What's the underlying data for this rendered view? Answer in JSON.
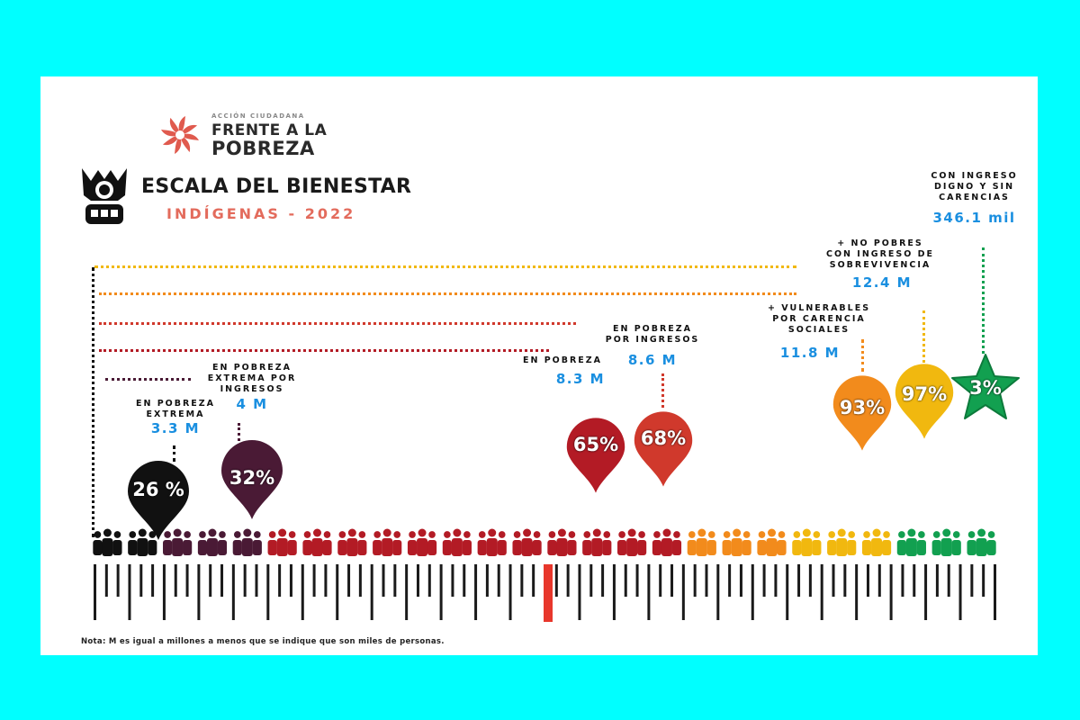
{
  "header": {
    "org_small": "ACCIÓN CIUDADANA",
    "org_line1": "FRENTE A LA",
    "org_line2": "POBREZA",
    "title": "ESCALA DEL BIENESTAR",
    "subtitle": "INDÍGENAS - 2022"
  },
  "colors": {
    "background": "#00ffff",
    "black": "#111111",
    "purple": "#4a1a35",
    "crimson": "#b31b25",
    "red": "#d0392c",
    "orange": "#f28b1c",
    "yellow": "#f1b80f",
    "green": "#12a050",
    "label_blue": "#1a8fe0",
    "logo_red": "#e05a4e"
  },
  "groups": [
    {
      "label": "EN POBREZA\nEXTREMA",
      "value": "3.3 M",
      "percent": "26 %",
      "shape": "pin",
      "color": "black"
    },
    {
      "label": "EN POBREZA\nEXTREMA POR\nINGRESOS",
      "value": "4 M",
      "percent": "32%",
      "shape": "pin",
      "color": "purple"
    },
    {
      "label": "EN POBREZA",
      "value": "8.3 M",
      "percent": "65%",
      "shape": "pin",
      "color": "crimson"
    },
    {
      "label": "EN POBREZA\nPOR INGRESOS",
      "value": "8.6 M",
      "percent": "68%",
      "shape": "pin",
      "color": "red"
    },
    {
      "label": "+ VULNERABLES\nPOR CARENCIA\nSOCIALES",
      "value": "11.8 M",
      "percent": "93%",
      "shape": "pin",
      "color": "orange"
    },
    {
      "label": "+ NO POBRES\nCON INGRESO DE\nSOBREVIVENCIA",
      "value": "12.4 M",
      "percent": "97%",
      "shape": "pin",
      "color": "yellow"
    },
    {
      "label": "CON INGRESO\nDIGNO Y SIN\nCARENCIAS",
      "value": "346.1 mil",
      "percent": "3%",
      "shape": "star",
      "color": "green"
    }
  ],
  "people_row_colors": [
    "black",
    "black",
    "purple",
    "purple",
    "purple",
    "crimson",
    "crimson",
    "crimson",
    "crimson",
    "crimson",
    "crimson",
    "crimson",
    "crimson",
    "crimson",
    "crimson",
    "crimson",
    "crimson",
    "orange",
    "orange",
    "orange",
    "yellow",
    "yellow",
    "yellow",
    "green",
    "green",
    "green"
  ],
  "note": "Nota: M es igual a millones a menos que se indique que son miles de personas."
}
